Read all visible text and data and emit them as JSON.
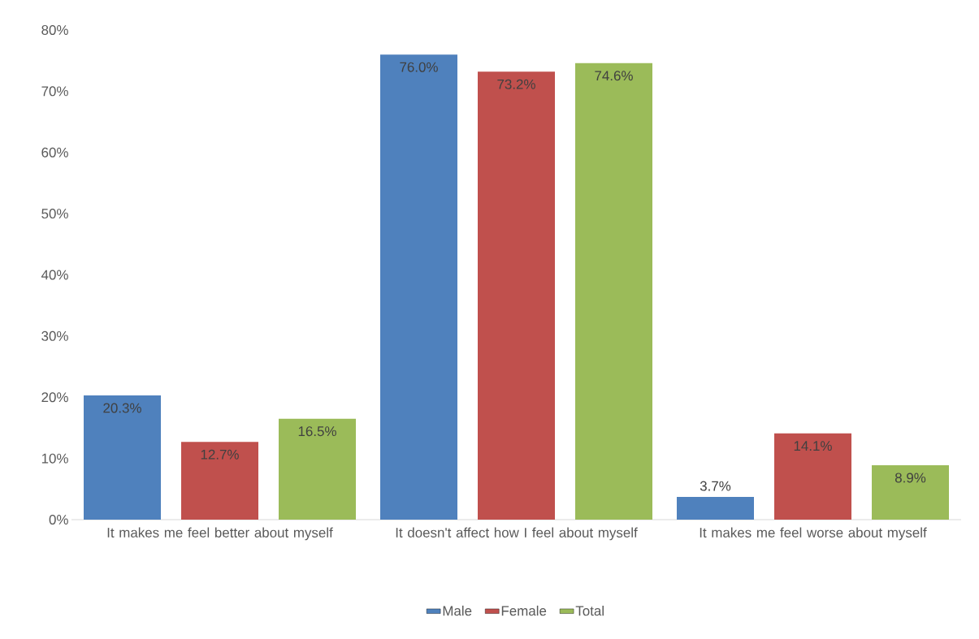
{
  "chart_data": {
    "type": "bar",
    "categories": [
      "It makes me feel better about myself",
      "It doesn't affect how I feel about myself",
      "It makes me feel worse about myself"
    ],
    "series": [
      {
        "name": "Male",
        "color": "#4f81bd",
        "values": [
          20.3,
          76.0,
          3.7
        ],
        "value_labels": [
          "20.3%",
          "76.0%",
          "3.7%"
        ]
      },
      {
        "name": "Female",
        "color": "#c0504d",
        "values": [
          12.7,
          73.2,
          14.1
        ],
        "value_labels": [
          "12.7%",
          "73.2%",
          "14.1%"
        ]
      },
      {
        "name": "Total",
        "color": "#9bbb59",
        "values": [
          16.5,
          74.6,
          8.9
        ],
        "value_labels": [
          "16.5%",
          "74.6%",
          "8.9%"
        ]
      }
    ],
    "ylim": [
      0,
      80
    ],
    "yticks": [
      {
        "value": 0,
        "label": "0%"
      },
      {
        "value": 10,
        "label": "10%"
      },
      {
        "value": 20,
        "label": "20%"
      },
      {
        "value": 30,
        "label": "30%"
      },
      {
        "value": 40,
        "label": "40%"
      },
      {
        "value": 50,
        "label": "50%"
      },
      {
        "value": 60,
        "label": "60%"
      },
      {
        "value": 70,
        "label": "70%"
      },
      {
        "value": 80,
        "label": "80%"
      }
    ],
    "legend": "bottom"
  }
}
